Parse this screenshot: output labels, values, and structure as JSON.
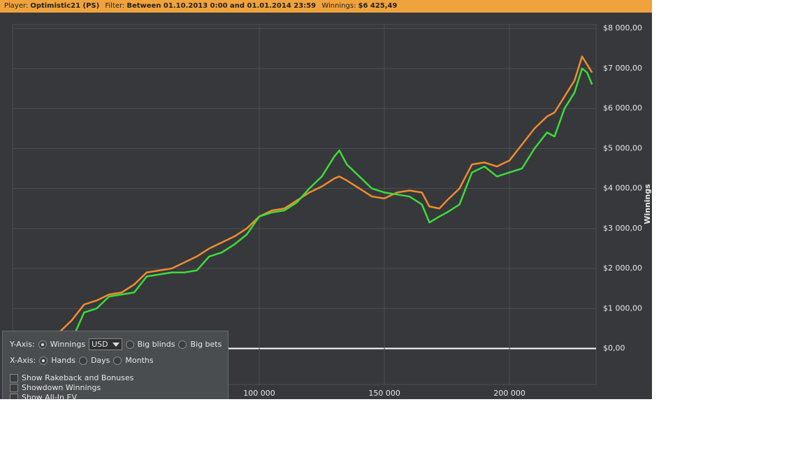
{
  "header": {
    "player_label": "Player:",
    "player": "Optimistic21 (PS)",
    "filter_label": "Filter:",
    "filter": "Between 01.10.2013 0:00 and 01.01.2014 23:59",
    "winnings_label": "Winnings:",
    "winnings": "$6 425,49"
  },
  "panel": {
    "y_axis_label": "Y-Axis:",
    "y_options": [
      "Winnings",
      "Big blinds",
      "Big bets"
    ],
    "currency": "USD",
    "x_axis_label": "X-Axis:",
    "x_options": [
      "Hands",
      "Days",
      "Months"
    ],
    "checks": [
      "Show Rakeback and Bonuses",
      "Showdown Winnings",
      "Show All-In EV"
    ]
  },
  "chart_data": {
    "type": "line",
    "y_label": "Winnings",
    "x": [
      0,
      10000,
      20000,
      25000,
      30000,
      35000,
      40000,
      45000,
      50000,
      55000,
      60000,
      65000,
      70000,
      75000,
      80000,
      85000,
      90000,
      95000,
      100000,
      105000,
      110000,
      115000,
      120000,
      125000,
      130000,
      132000,
      135000,
      140000,
      145000,
      150000,
      155000,
      160000,
      165000,
      168000,
      172000,
      175000,
      180000,
      185000,
      190000,
      195000,
      200000,
      205000,
      210000,
      215000,
      218000,
      222000,
      226000,
      229000,
      231000,
      233000
    ],
    "series": [
      {
        "color": "#f08c30",
        "values": [
          0,
          200,
          400,
          700,
          1100,
          1200,
          1350,
          1400,
          1600,
          1900,
          1950,
          2000,
          2150,
          2300,
          2500,
          2650,
          2800,
          3000,
          3300,
          3450,
          3500,
          3700,
          3900,
          4050,
          4250,
          4300,
          4200,
          4000,
          3800,
          3750,
          3900,
          3950,
          3900,
          3550,
          3500,
          3700,
          4000,
          4600,
          4650,
          4550,
          4700,
          5100,
          5500,
          5800,
          5900,
          6300,
          6700,
          7300,
          7100,
          6900
        ]
      },
      {
        "color": "#3ddc3a",
        "values": [
          0,
          100,
          150,
          200,
          900,
          1000,
          1300,
          1350,
          1400,
          1800,
          1850,
          1900,
          1900,
          1950,
          2300,
          2400,
          2600,
          2850,
          3300,
          3400,
          3450,
          3650,
          4000,
          4300,
          4800,
          4950,
          4600,
          4300,
          4000,
          3900,
          3850,
          3800,
          3600,
          3150,
          3300,
          3400,
          3600,
          4400,
          4550,
          4300,
          4400,
          4500,
          5000,
          5400,
          5300,
          6000,
          6400,
          7000,
          6900,
          6600
        ]
      }
    ],
    "xlim": [
      1400,
      234600
    ],
    "xticks": [
      {
        "value": 100000,
        "label": "100 000"
      },
      {
        "value": 150000,
        "label": "150 000"
      },
      {
        "value": 200000,
        "label": "200 000"
      }
    ],
    "ylim": [
      -900,
      8100
    ],
    "yticks": [
      {
        "value": 0,
        "label": "$0,00"
      },
      {
        "value": 1000,
        "label": "$1 000,00"
      },
      {
        "value": 2000,
        "label": "$2 000,00"
      },
      {
        "value": 3000,
        "label": "$3 000,00"
      },
      {
        "value": 4000,
        "label": "$4 000,00"
      },
      {
        "value": 5000,
        "label": "$5 000,00"
      },
      {
        "value": 6000,
        "label": "$6 000,00"
      },
      {
        "value": 7000,
        "label": "$7 000,00"
      },
      {
        "value": 8000,
        "label": "$8 000,00"
      }
    ],
    "grid": true
  }
}
